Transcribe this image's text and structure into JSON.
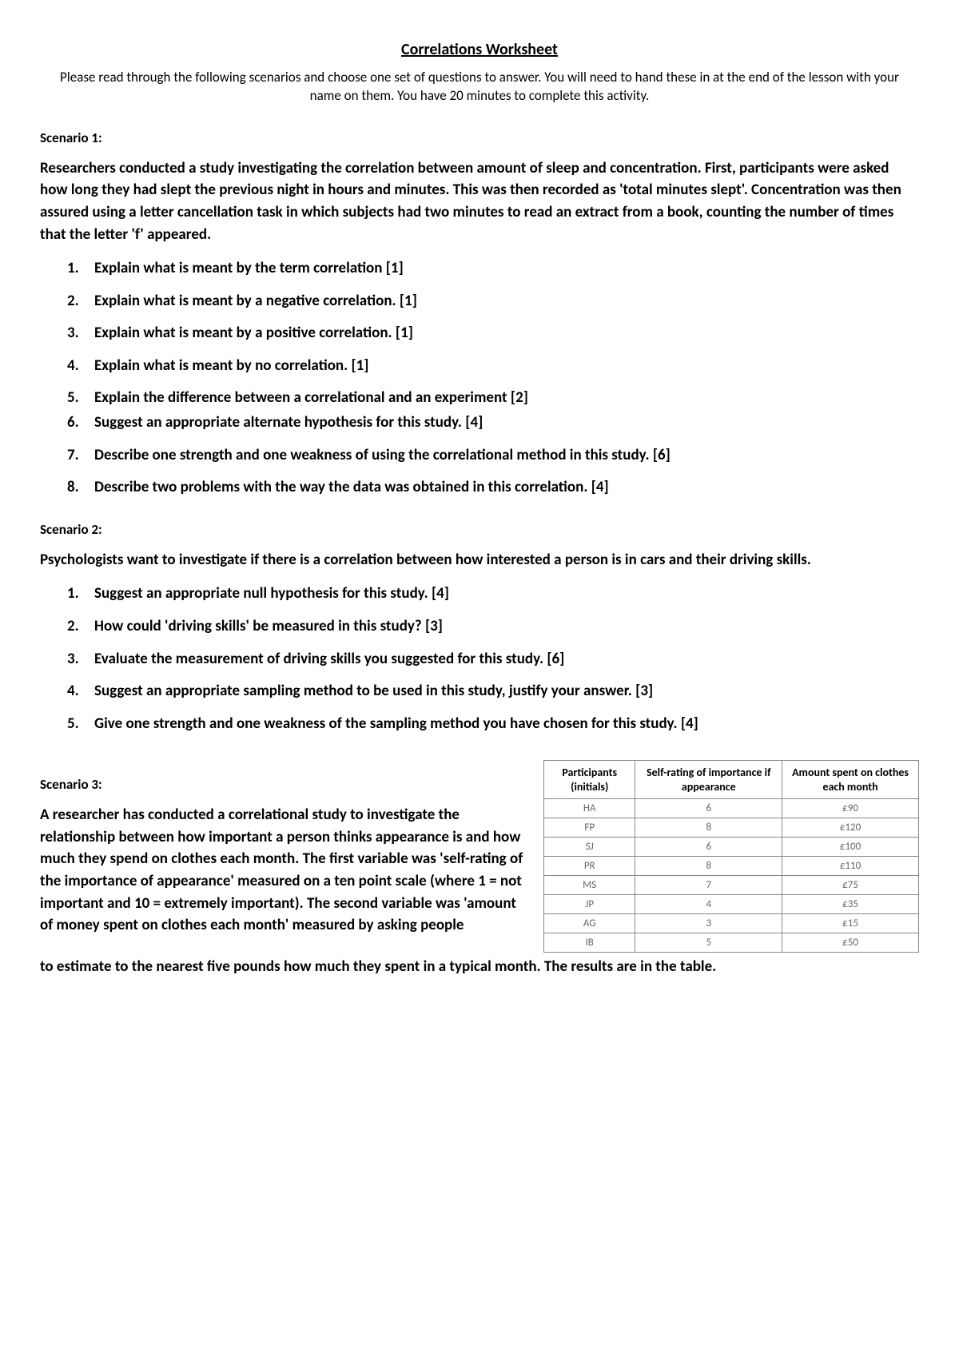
{
  "title": "Correlations Worksheet",
  "instructions": "Please read through the following scenarios and choose one set of questions to answer. You will need to hand these in at the end of the lesson with your name on them. You have 20 minutes to complete this activity.",
  "scenario1": {
    "label": "Scenario 1:",
    "desc": "Researchers conducted a study investigating the correlation between amount of sleep and concentration. First, participants were asked how long they had slept the previous night in hours and minutes. This was then recorded as 'total minutes slept'. Concentration was then assured using a letter cancellation task in which subjects had two minutes to read an extract from a book, counting the number of times that the letter 'f' appeared.",
    "questions": [
      "Explain what is meant by the term correlation [1]",
      "Explain what is meant by a negative correlation. [1]",
      "Explain what is meant by a positive correlation. [1]",
      "Explain what is meant by no correlation. [1]",
      "Explain the difference between a correlational and an experiment [2]",
      "Suggest an appropriate alternate hypothesis for this study. [4]",
      "Describe one strength and one weakness of using the correlational method in this study. [6]",
      "Describe two problems with the way the data was obtained in this correlation. [4]"
    ]
  },
  "scenario2": {
    "label": "Scenario 2:",
    "desc": "Psychologists want to investigate if there is a correlation between how interested a person is in cars and their driving skills.",
    "questions": [
      "Suggest an appropriate null hypothesis for this study. [4]",
      "How could 'driving skills' be measured in this study? [3]",
      "Evaluate the measurement of driving skills you suggested for this study. [6]",
      "Suggest an appropriate sampling method to be used in this study, justify your answer. [3]",
      "Give one strength and one weakness of the sampling method you have chosen for this study. [4]"
    ]
  },
  "scenario3": {
    "label": "Scenario 3:",
    "desc_part1": "A researcher has conducted a correlational study to investigate the relationship between how important a person thinks appearance is and how much they spend on clothes each month. The first variable was 'self-rating of the importance of appearance' measured on a ten point scale (where 1 = not important and 10 = extremely important). The second variable was 'amount of money spent on clothes each month' measured by asking people",
    "desc_part2": "to estimate to the nearest five pounds how much they spent in a typical month. The results are in the table.",
    "table": {
      "headers": [
        "Participants (initials)",
        "Self-rating of importance if appearance",
        "Amount spent on clothes each month"
      ],
      "rows": [
        [
          "HA",
          "6",
          "£90"
        ],
        [
          "FP",
          "8",
          "£120"
        ],
        [
          "SJ",
          "6",
          "£100"
        ],
        [
          "PR",
          "8",
          "£110"
        ],
        [
          "MS",
          "7",
          "£75"
        ],
        [
          "JP",
          "4",
          "£35"
        ],
        [
          "AG",
          "3",
          "£15"
        ],
        [
          "IB",
          "5",
          "£50"
        ]
      ]
    }
  }
}
